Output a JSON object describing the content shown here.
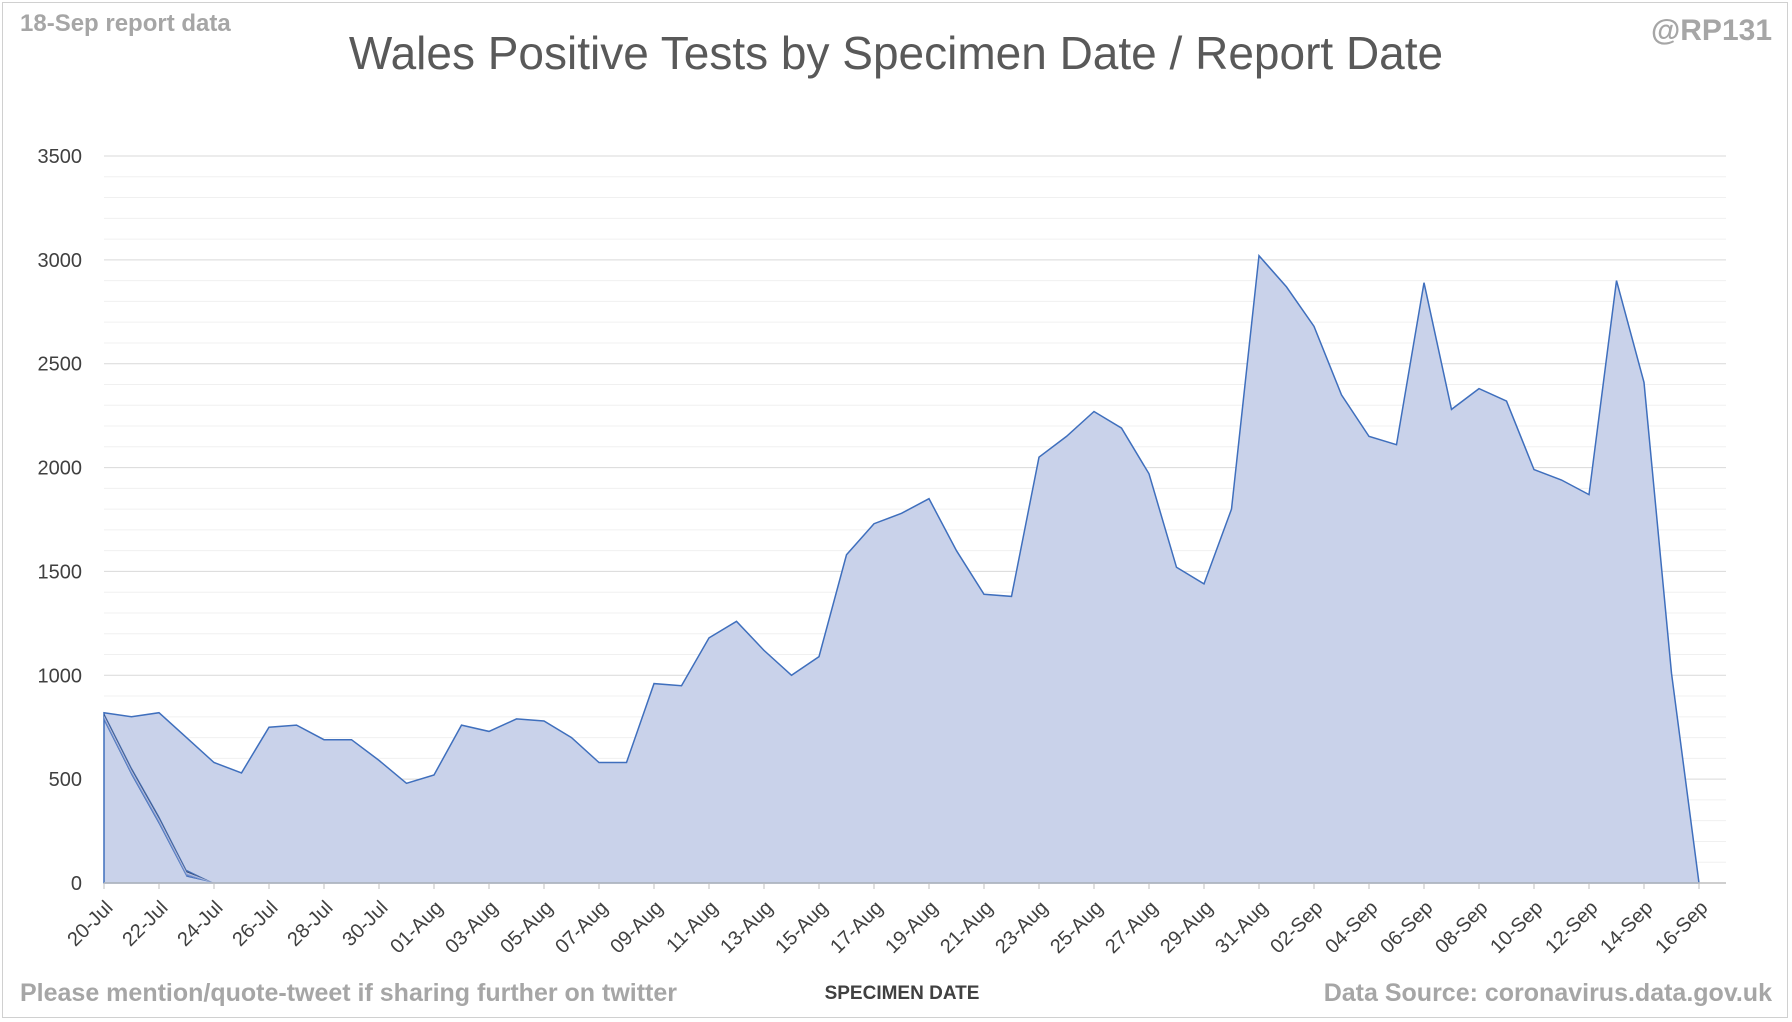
{
  "header": {
    "report_note": "18-Sep report data",
    "handle": "@RP131"
  },
  "footer": {
    "share_note": "Please mention/quote-tweet if sharing further on twitter",
    "source_note": "Data Source: coronavirus.data.gov.uk"
  },
  "chart_data": {
    "type": "area",
    "title": "Wales Positive Tests by Specimen Date / Report Date",
    "xlabel": "SPECIMEN DATE",
    "ylabel": "",
    "ylim": [
      0,
      3500
    ],
    "yticks": [
      0,
      500,
      1000,
      1500,
      2000,
      2500,
      3000,
      3500
    ],
    "grid": "horizontal major and minor",
    "legend": "none",
    "x": [
      "20-Jul",
      "21-Jul",
      "22-Jul",
      "23-Jul",
      "24-Jul",
      "25-Jul",
      "26-Jul",
      "27-Jul",
      "28-Jul",
      "29-Jul",
      "30-Jul",
      "31-Jul",
      "01-Aug",
      "02-Aug",
      "03-Aug",
      "04-Aug",
      "05-Aug",
      "06-Aug",
      "07-Aug",
      "08-Aug",
      "09-Aug",
      "10-Aug",
      "11-Aug",
      "12-Aug",
      "13-Aug",
      "14-Aug",
      "15-Aug",
      "16-Aug",
      "17-Aug",
      "18-Aug",
      "19-Aug",
      "20-Aug",
      "21-Aug",
      "22-Aug",
      "23-Aug",
      "24-Aug",
      "25-Aug",
      "26-Aug",
      "27-Aug",
      "28-Aug",
      "29-Aug",
      "30-Aug",
      "31-Aug",
      "01-Sep",
      "02-Sep",
      "03-Sep",
      "04-Sep",
      "05-Sep",
      "06-Sep",
      "07-Sep",
      "08-Sep",
      "09-Sep",
      "10-Sep",
      "11-Sep",
      "12-Sep",
      "13-Sep",
      "14-Sep",
      "15-Sep",
      "16-Sep"
    ],
    "tick_labels": [
      "20-Jul",
      "22-Jul",
      "24-Jul",
      "26-Jul",
      "28-Jul",
      "30-Jul",
      "01-Aug",
      "03-Aug",
      "05-Aug",
      "07-Aug",
      "09-Aug",
      "11-Aug",
      "13-Aug",
      "15-Aug",
      "17-Aug",
      "19-Aug",
      "21-Aug",
      "23-Aug",
      "25-Aug",
      "27-Aug",
      "29-Aug",
      "31-Aug",
      "02-Sep",
      "04-Sep",
      "06-Sep",
      "08-Sep",
      "10-Sep",
      "12-Sep",
      "14-Sep",
      "16-Sep"
    ],
    "total_by_specimen_date": [
      820,
      800,
      820,
      700,
      580,
      530,
      750,
      760,
      690,
      690,
      590,
      480,
      520,
      760,
      730,
      790,
      780,
      700,
      580,
      580,
      960,
      950,
      1180,
      1260,
      1120,
      1000,
      1090,
      1580,
      1730,
      1780,
      1850,
      1600,
      1390,
      1380,
      2050,
      2150,
      2270,
      2190,
      1970,
      1520,
      1440,
      1800,
      3020,
      2870,
      2680,
      2350,
      2150,
      2110,
      2890,
      2280,
      2380,
      2320,
      1990,
      1940,
      1870,
      2900,
      2410,
      1010,
      0
    ],
    "colors": [
      "#3f6fbd",
      "#2c4f8a",
      "#253f73",
      "#bfc8e2",
      "#9eaed9",
      "#6e8ace",
      "#4a77c4",
      "#3a66b0"
    ]
  }
}
